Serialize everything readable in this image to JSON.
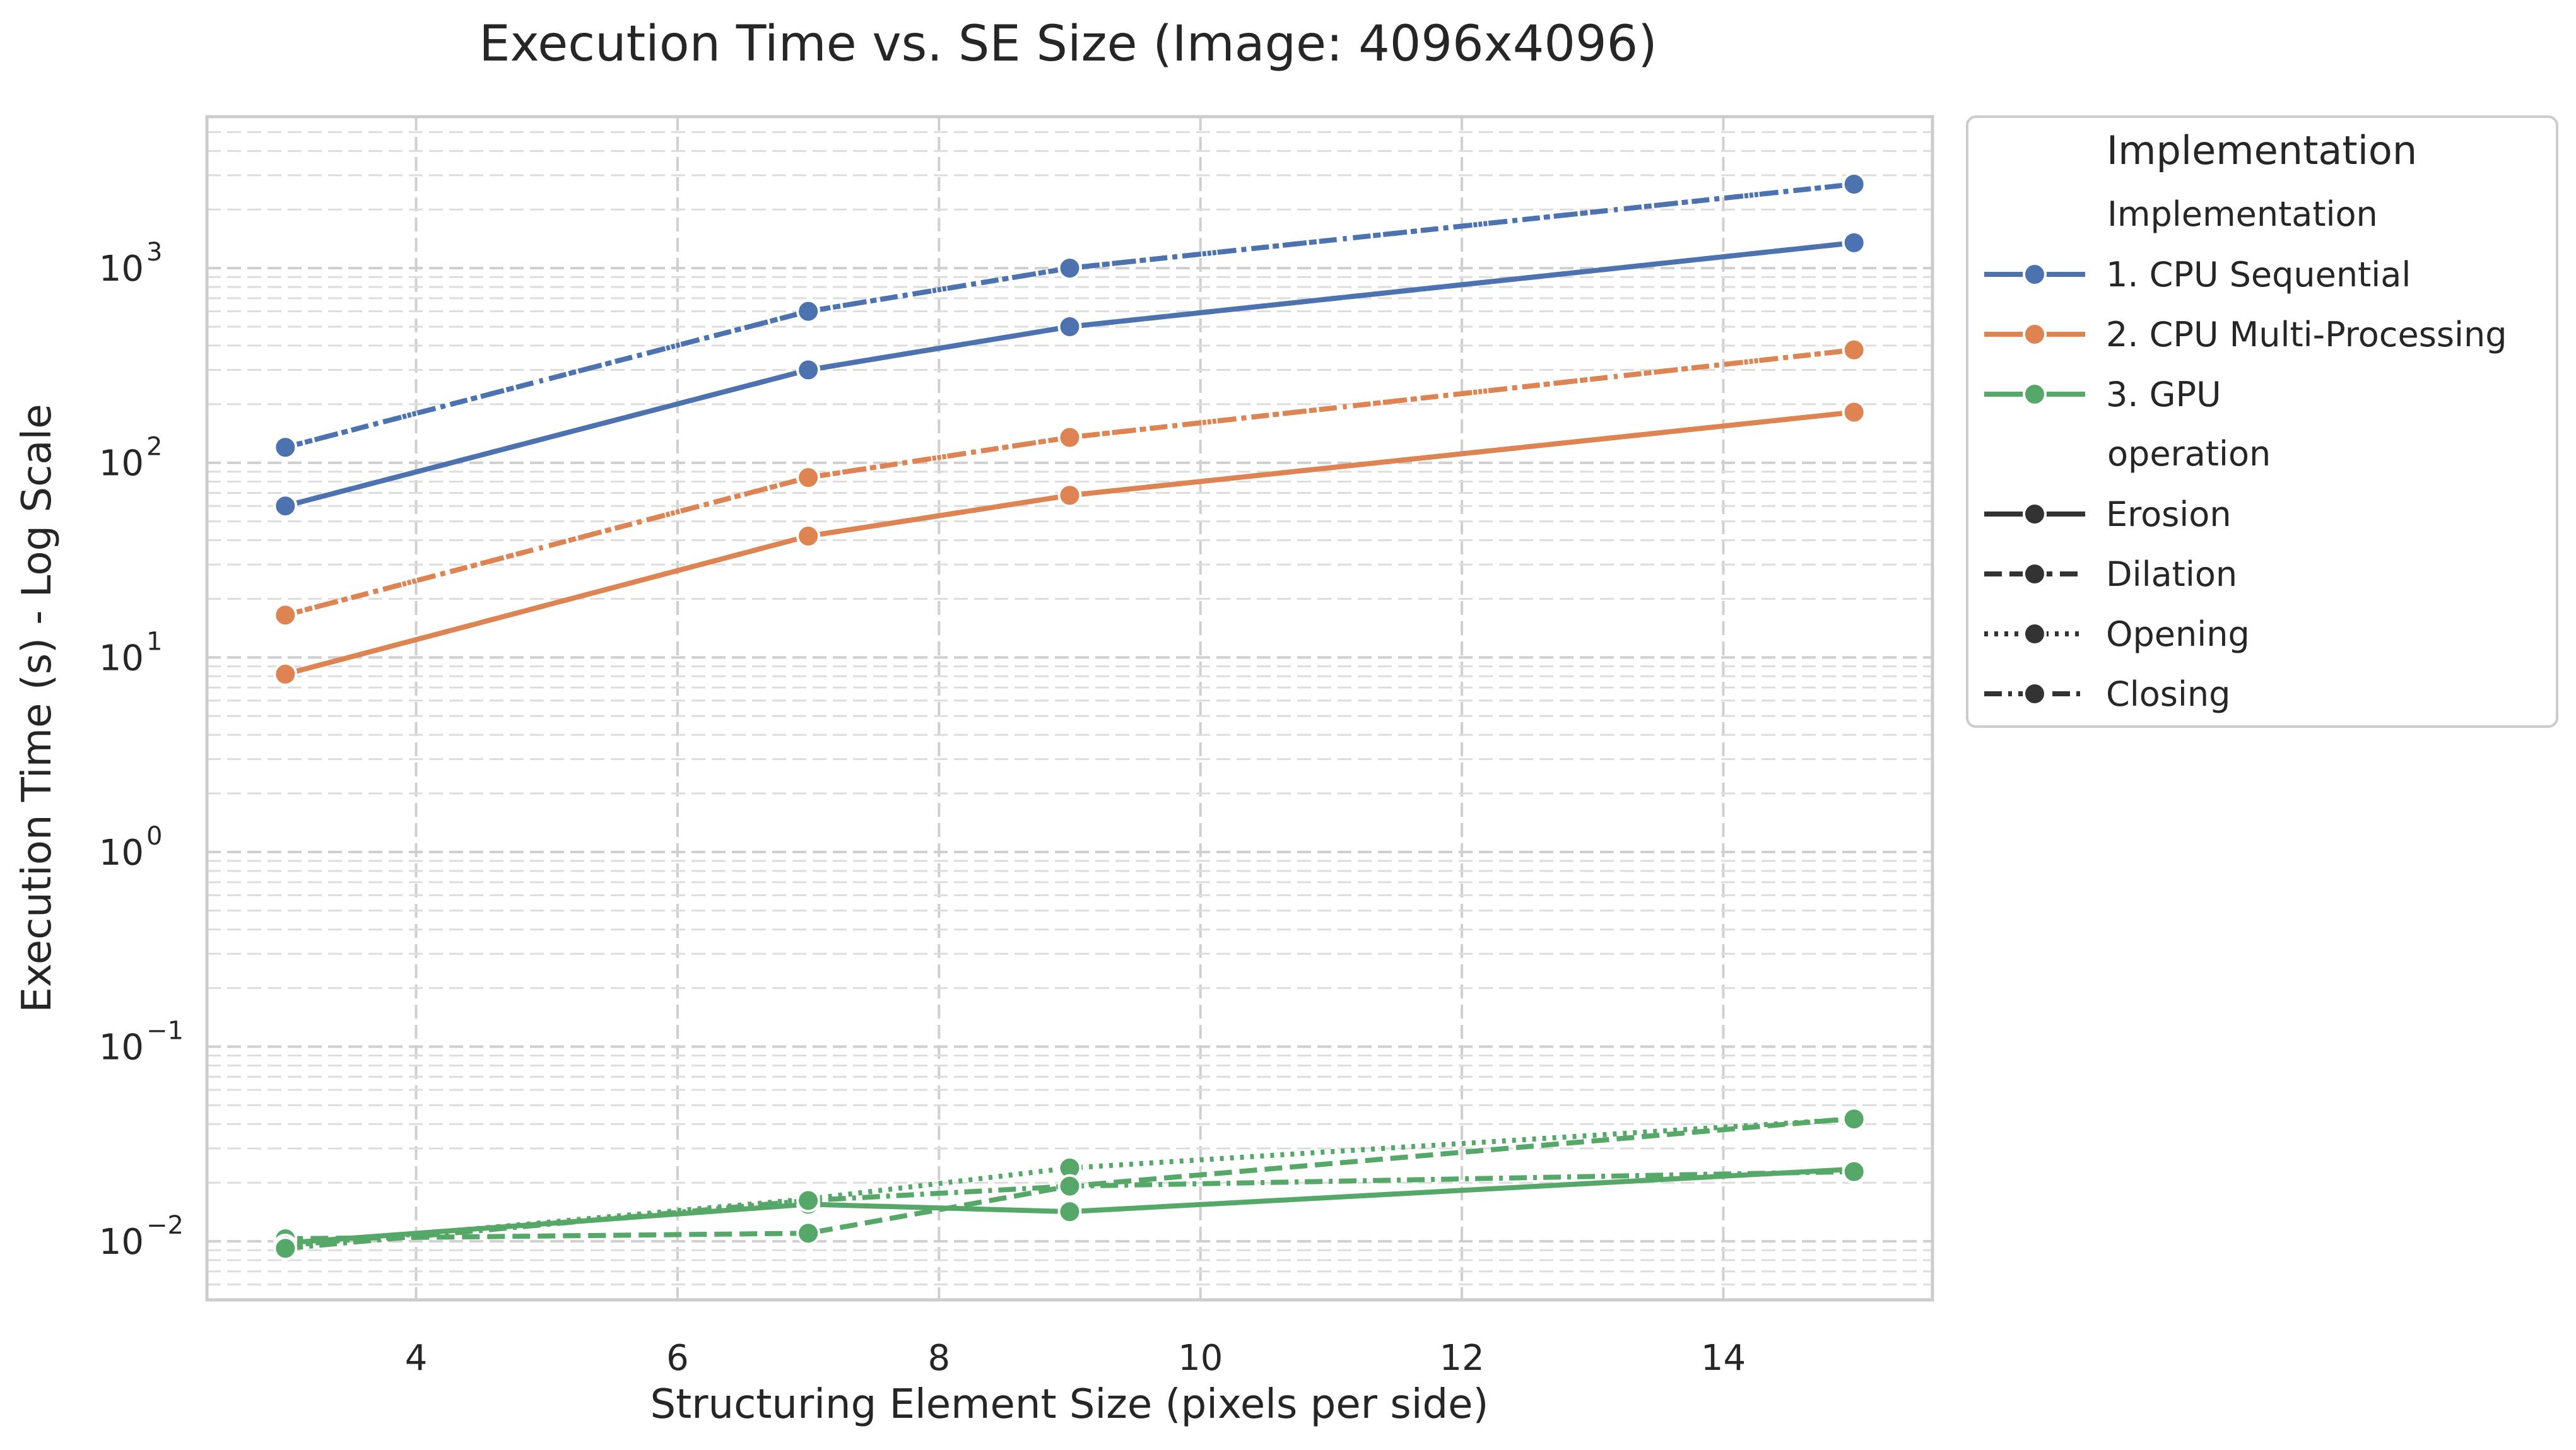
{
  "chart_data": {
    "type": "line",
    "title": "Execution Time vs. SE Size (Image: 4096x4096)",
    "xlabel": "Structuring Element Size (pixels per side)",
    "ylabel": "Execution Time (s) - Log Scale",
    "xlim": [
      2.4,
      15.6
    ],
    "ylim": [
      0.005,
      6000
    ],
    "yscale": "log",
    "xticks": [
      4,
      6,
      8,
      10,
      12,
      14
    ],
    "yticks": [
      {
        "value": 0.01,
        "base": "10",
        "exp": "−2"
      },
      {
        "value": 0.1,
        "base": "10",
        "exp": "−1"
      },
      {
        "value": 1,
        "base": "10",
        "exp": "0"
      },
      {
        "value": 10,
        "base": "10",
        "exp": "1"
      },
      {
        "value": 100,
        "base": "10",
        "exp": "2"
      },
      {
        "value": 1000,
        "base": "10",
        "exp": "3"
      }
    ],
    "grid": true,
    "legend_placement": "outside-right",
    "legend": {
      "title": "Implementation",
      "hue_title": "Implementation",
      "hue_entries": [
        {
          "label": "1. CPU Sequential",
          "color": "#4c72b0"
        },
        {
          "label": "2. CPU Multi-Processing",
          "color": "#dd8452"
        },
        {
          "label": "3. GPU",
          "color": "#55a868"
        }
      ],
      "style_title": "operation",
      "style_entries": [
        {
          "label": "Erosion",
          "dash": "solid"
        },
        {
          "label": "Dilation",
          "dash": "dashed"
        },
        {
          "label": "Opening",
          "dash": "dotted"
        },
        {
          "label": "Closing",
          "dash": "dashdot"
        }
      ]
    },
    "x": [
      3,
      7,
      9,
      15
    ],
    "series": [
      {
        "implementation": "1. CPU Sequential",
        "operation": "Erosion",
        "color": "#4c72b0",
        "dash": "solid",
        "values": [
          60,
          300,
          500,
          1350
        ]
      },
      {
        "implementation": "1. CPU Sequential",
        "operation": "Dilation",
        "color": "#4c72b0",
        "dash": "dashed",
        "values": [
          60,
          300,
          500,
          1350
        ]
      },
      {
        "implementation": "1. CPU Sequential",
        "operation": "Opening",
        "color": "#4c72b0",
        "dash": "dotted",
        "values": [
          120,
          600,
          1000,
          2700
        ]
      },
      {
        "implementation": "1. CPU Sequential",
        "operation": "Closing",
        "color": "#4c72b0",
        "dash": "dashdot",
        "values": [
          120,
          600,
          1000,
          2700
        ]
      },
      {
        "implementation": "2. CPU Multi-Processing",
        "operation": "Erosion",
        "color": "#dd8452",
        "dash": "solid",
        "values": [
          8.2,
          42,
          68,
          182
        ]
      },
      {
        "implementation": "2. CPU Multi-Processing",
        "operation": "Dilation",
        "color": "#dd8452",
        "dash": "dashed",
        "values": [
          8.2,
          42,
          68,
          182
        ]
      },
      {
        "implementation": "2. CPU Multi-Processing",
        "operation": "Opening",
        "color": "#dd8452",
        "dash": "dotted",
        "values": [
          16.5,
          84,
          135,
          380
        ]
      },
      {
        "implementation": "2. CPU Multi-Processing",
        "operation": "Closing",
        "color": "#dd8452",
        "dash": "dashdot",
        "values": [
          16.5,
          84,
          135,
          380
        ]
      },
      {
        "implementation": "3. GPU",
        "operation": "Erosion",
        "color": "#55a868",
        "dash": "solid",
        "values": [
          0.0098,
          0.0155,
          0.0142,
          0.0235
        ]
      },
      {
        "implementation": "3. GPU",
        "operation": "Dilation",
        "color": "#55a868",
        "dash": "dashed",
        "values": [
          0.0103,
          0.011,
          0.0192,
          0.0428
        ]
      },
      {
        "implementation": "3. GPU",
        "operation": "Opening",
        "color": "#55a868",
        "dash": "dotted",
        "values": [
          0.0095,
          0.0165,
          0.0238,
          0.0425
        ]
      },
      {
        "implementation": "3. GPU",
        "operation": "Closing",
        "color": "#55a868",
        "dash": "dashdot",
        "values": [
          0.0092,
          0.0162,
          0.0192,
          0.0228
        ]
      }
    ]
  }
}
